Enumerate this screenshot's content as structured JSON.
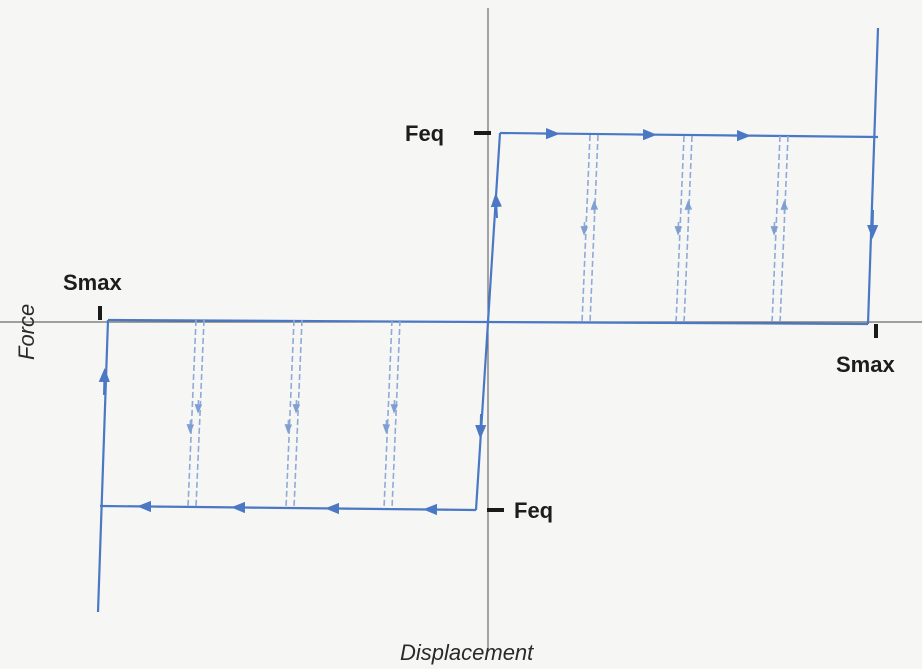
{
  "axes": {
    "x_label": "Displacement",
    "y_label": "Force"
  },
  "markers": {
    "feq_top": "Feq",
    "feq_bottom": "Feq",
    "smax_left": "Smax",
    "smax_right": "Smax"
  },
  "colors": {
    "curve": "#4a78c4",
    "dashed": "#9bb3dc",
    "axis": "#666666",
    "tick": "#1a1a1a"
  }
}
